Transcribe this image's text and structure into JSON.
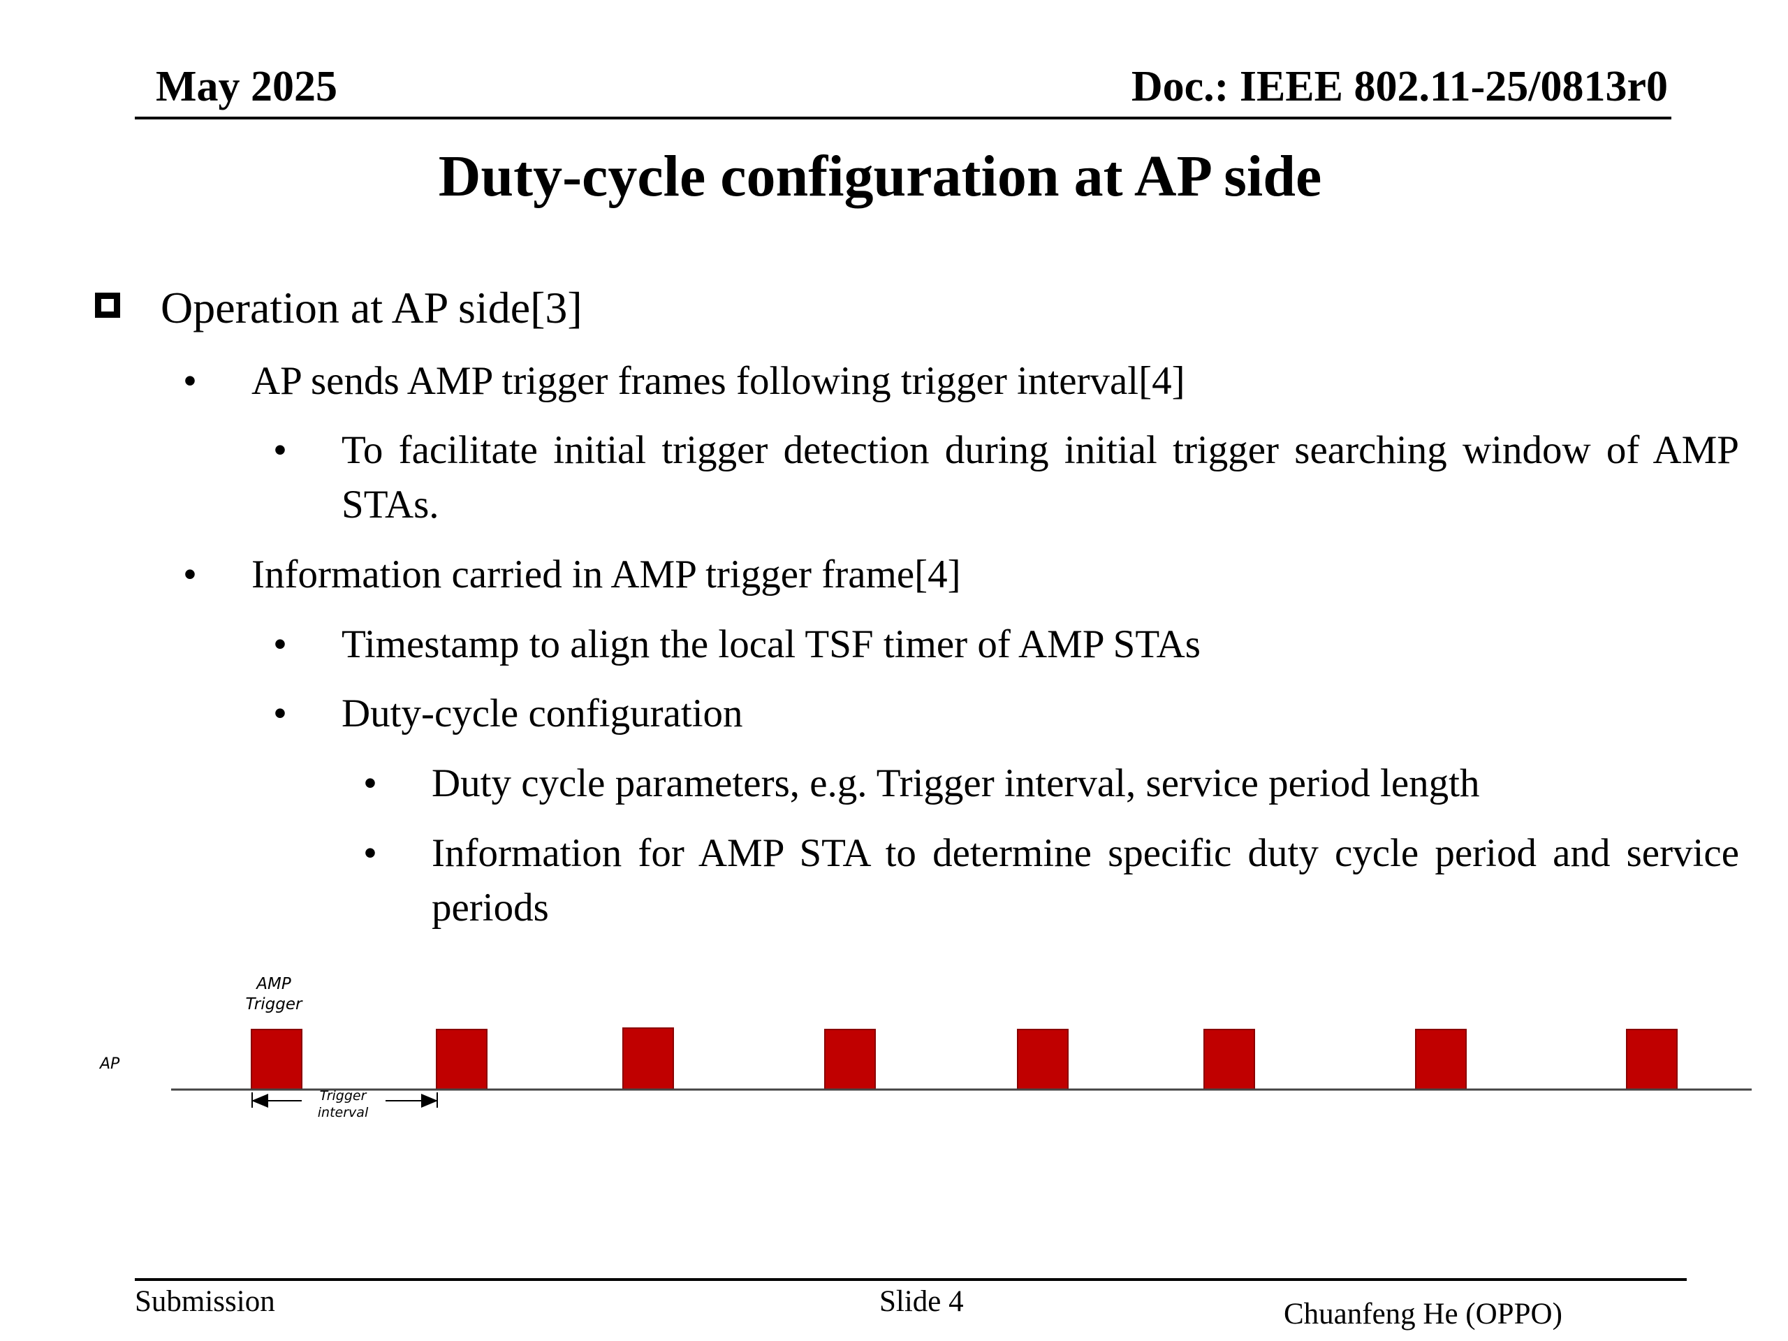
{
  "header": {
    "date": "May 2025",
    "doc_id": "Doc.: IEEE 802.11-25/0813r0"
  },
  "title": "Duty-cycle configuration at AP side",
  "bullets": [
    {
      "level": 0,
      "text": "Operation at AP side[3]"
    },
    {
      "level": 1,
      "text": "AP sends AMP trigger frames following trigger interval[4]"
    },
    {
      "level": 2,
      "text": "To facilitate initial trigger detection during initial trigger searching window of AMP STAs."
    },
    {
      "level": 1,
      "text": "Information carried in AMP trigger frame[4]"
    },
    {
      "level": 2,
      "text": "Timestamp to align the local TSF timer of AMP STAs"
    },
    {
      "level": 2,
      "text": "Duty-cycle configuration"
    },
    {
      "level": 3,
      "text": "Duty cycle parameters, e.g. Trigger interval, service period length"
    },
    {
      "level": 3,
      "text": "Information for AMP STA to determine specific duty cycle period and service periods"
    }
  ],
  "bullet_marker": "•",
  "diagram": {
    "row_label": "AP",
    "trigger_label_line1": "AMP",
    "trigger_label_line2": "Trigger",
    "interval_label_line1": "Trigger",
    "interval_label_line2": "interval",
    "frame_color": "#C00000"
  },
  "footer": {
    "left": "Submission",
    "center": "Slide 4",
    "right": "Chuanfeng He (OPPO)"
  }
}
